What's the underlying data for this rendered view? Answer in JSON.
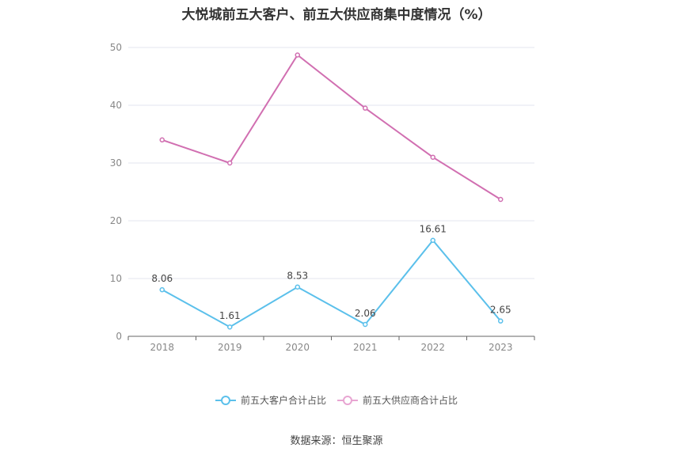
{
  "chart_data": {
    "type": "line",
    "title": "大悦城前五大客户、前五大供应商集中度情况（%）",
    "categories": [
      "2018",
      "2019",
      "2020",
      "2021",
      "2022",
      "2023"
    ],
    "series": [
      {
        "name": "前五大客户合计占比",
        "color": "#5bc0eb",
        "values": [
          8.06,
          1.61,
          8.53,
          2.06,
          16.61,
          2.65
        ],
        "labels": [
          "8.06",
          "1.61",
          "8.53",
          "2.06",
          "16.61",
          "2.65"
        ]
      },
      {
        "name": "前五大供应商合计占比",
        "color": "#d16fb1",
        "values": [
          34.0,
          30.0,
          48.7,
          39.5,
          31.0,
          23.7
        ]
      }
    ],
    "ylim": [
      0,
      50
    ],
    "yticks": [
      "0",
      "10",
      "20",
      "30",
      "40",
      "50"
    ],
    "grid": true,
    "legend_position": "bottom"
  },
  "source": "数据来源：恒生聚源"
}
